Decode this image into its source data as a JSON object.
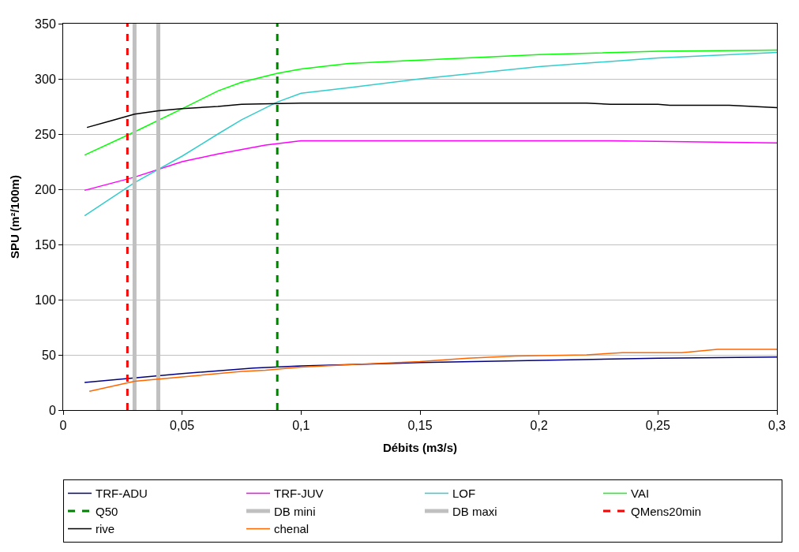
{
  "chart_data": {
    "type": "line",
    "xlabel": "Débits (m3/s)",
    "ylabel": "SPU (m²/100m)",
    "xlim": [
      0,
      0.3
    ],
    "xticks": [
      0,
      {
        "value": 0.05,
        "label": "0,05"
      },
      {
        "value": 0.1,
        "label": "0,1"
      },
      {
        "value": 0.15,
        "label": "0,15"
      },
      {
        "value": 0.2,
        "label": "0,2"
      },
      {
        "value": 0.25,
        "label": "0,25"
      },
      {
        "value": 0.3,
        "label": "0,3"
      }
    ],
    "ylim": [
      0,
      350
    ],
    "yticks": [
      0,
      50,
      100,
      150,
      200,
      250,
      300,
      350
    ],
    "grid": "y",
    "legend": "bottom",
    "marker": "none",
    "line_style": "solid",
    "series": [
      {
        "name": "TRF-ADU",
        "color": "#000080",
        "x": [
          0.009,
          0.05,
          0.08,
          0.1,
          0.15,
          0.2,
          0.25,
          0.3
        ],
        "values": [
          25,
          33,
          38,
          40,
          43,
          45,
          47,
          48
        ]
      },
      {
        "name": "TRF-JUV",
        "color": "#ff00ff",
        "x": [
          0.009,
          0.03,
          0.05,
          0.065,
          0.085,
          0.1,
          0.15,
          0.2,
          0.23,
          0.3
        ],
        "values": [
          199,
          211,
          225,
          232,
          240,
          244,
          244,
          244,
          244,
          242
        ]
      },
      {
        "name": "LOF",
        "color": "#33cccc",
        "x": [
          0.009,
          0.03,
          0.05,
          0.065,
          0.075,
          0.09,
          0.1,
          0.12,
          0.15,
          0.2,
          0.25,
          0.3
        ],
        "values": [
          176,
          206,
          230,
          250,
          263,
          279,
          287,
          292,
          300,
          311,
          319,
          324
        ]
      },
      {
        "name": "VAI",
        "color": "#00ff00",
        "x": [
          0.009,
          0.03,
          0.05,
          0.065,
          0.075,
          0.09,
          0.1,
          0.12,
          0.15,
          0.2,
          0.25,
          0.3
        ],
        "values": [
          231,
          252,
          273,
          289,
          297,
          305,
          309,
          314,
          317,
          322,
          325,
          326
        ]
      },
      {
        "name": "rive",
        "color": "#000000",
        "x": [
          0.01,
          0.02,
          0.03,
          0.04,
          0.05,
          0.065,
          0.075,
          0.1,
          0.2,
          0.22,
          0.23,
          0.25,
          0.255,
          0.28,
          0.3
        ],
        "values": [
          256,
          262,
          268,
          271,
          273,
          275,
          277,
          278,
          278,
          278,
          277,
          277,
          276,
          276,
          274
        ]
      },
      {
        "name": "chenal",
        "color": "#ff6600",
        "x": [
          0.011,
          0.03,
          0.05,
          0.075,
          0.085,
          0.1,
          0.12,
          0.14,
          0.15,
          0.17,
          0.19,
          0.22,
          0.235,
          0.26,
          0.275,
          0.3
        ],
        "values": [
          17,
          26,
          30,
          35,
          36,
          39,
          41,
          43,
          44,
          47,
          49,
          50,
          52,
          52,
          55,
          55
        ]
      }
    ],
    "ref_lines": [
      {
        "axis": "x",
        "value": 0.09,
        "label": "Q50",
        "color": "#008000",
        "line_style": "dashed"
      },
      {
        "axis": "x",
        "value": 0.03,
        "label": "DB mini",
        "color": "#c0c0c0",
        "line_style": "solid"
      },
      {
        "axis": "x",
        "value": 0.04,
        "label": "DB maxi",
        "color": "#c0c0c0",
        "line_style": "solid"
      },
      {
        "axis": "x",
        "value": 0.027,
        "label": "QMens20min",
        "color": "#ff0000",
        "line_style": "dashed"
      }
    ]
  }
}
